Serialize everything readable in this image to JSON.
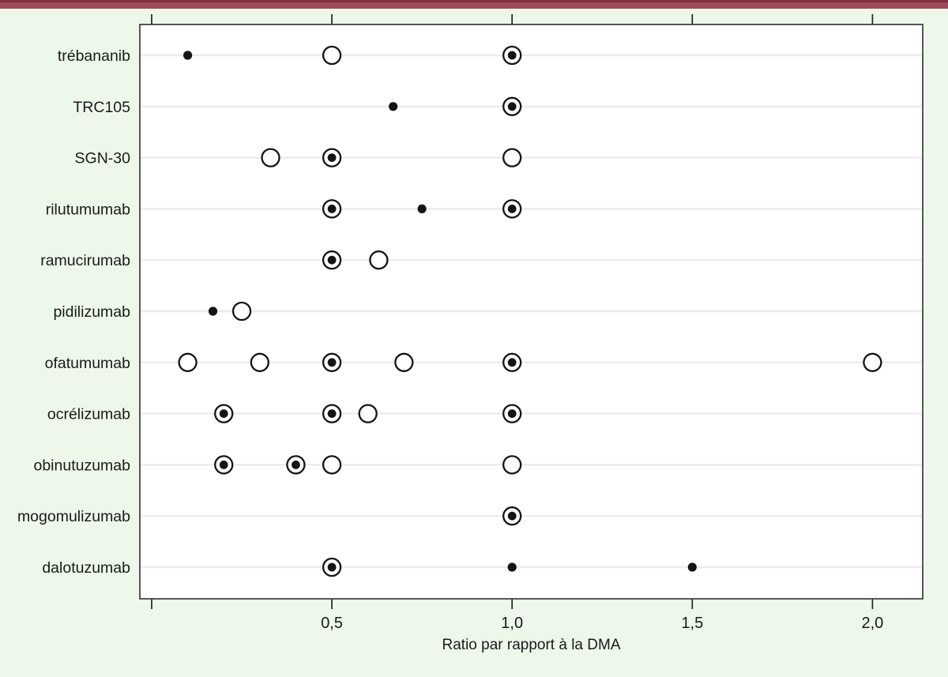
{
  "page": {
    "accent_bar_color": "#9d4b5b",
    "accent_bar_edge_color": "#7c3040",
    "background_color": "#edf8ea",
    "plot_background_color": "#ffffff",
    "marker_color": "#141414",
    "gridline_color": "#ebebeb"
  },
  "chart_data": {
    "type": "scatter",
    "title": "",
    "xlabel": "Ratio par rapport à la DMA",
    "ylabel": "",
    "x_range": [
      -0.03,
      2.14
    ],
    "grid": "horizontal",
    "legend": "none",
    "x_ticks": [
      {
        "value": 0.0,
        "label": ""
      },
      {
        "value": 0.5,
        "label": "0,5"
      },
      {
        "value": 1.0,
        "label": "1,0"
      },
      {
        "value": 1.5,
        "label": "1,5"
      },
      {
        "value": 2.0,
        "label": "2,0"
      }
    ],
    "categories": [
      "trébananib",
      "TRC105",
      "SGN-30",
      "rilutumumab",
      "ramucirumab",
      "pidilizumab",
      "ofatumumab",
      "ocrélizumab",
      "obinutuzumab",
      "mogomulizumab",
      "dalotuzumab"
    ],
    "marker_types": {
      "dot": "small filled black dot",
      "circle": "large open circle",
      "circle_dot": "large open circle with filled center dot"
    },
    "points": [
      {
        "category": "trébananib",
        "value": 0.1,
        "marker": "dot"
      },
      {
        "category": "trébananib",
        "value": 0.5,
        "marker": "circle"
      },
      {
        "category": "trébananib",
        "value": 1.0,
        "marker": "circle_dot"
      },
      {
        "category": "TRC105",
        "value": 0.67,
        "marker": "dot"
      },
      {
        "category": "TRC105",
        "value": 1.0,
        "marker": "circle_dot"
      },
      {
        "category": "SGN-30",
        "value": 0.33,
        "marker": "circle"
      },
      {
        "category": "SGN-30",
        "value": 0.5,
        "marker": "circle_dot"
      },
      {
        "category": "SGN-30",
        "value": 1.0,
        "marker": "circle"
      },
      {
        "category": "rilutumumab",
        "value": 0.5,
        "marker": "circle_dot"
      },
      {
        "category": "rilutumumab",
        "value": 0.75,
        "marker": "dot"
      },
      {
        "category": "rilutumumab",
        "value": 1.0,
        "marker": "circle_dot"
      },
      {
        "category": "ramucirumab",
        "value": 0.5,
        "marker": "circle_dot"
      },
      {
        "category": "ramucirumab",
        "value": 0.63,
        "marker": "circle"
      },
      {
        "category": "pidilizumab",
        "value": 0.17,
        "marker": "dot"
      },
      {
        "category": "pidilizumab",
        "value": 0.25,
        "marker": "circle"
      },
      {
        "category": "ofatumumab",
        "value": 0.1,
        "marker": "circle"
      },
      {
        "category": "ofatumumab",
        "value": 0.3,
        "marker": "circle"
      },
      {
        "category": "ofatumumab",
        "value": 0.5,
        "marker": "circle_dot"
      },
      {
        "category": "ofatumumab",
        "value": 0.7,
        "marker": "circle"
      },
      {
        "category": "ofatumumab",
        "value": 1.0,
        "marker": "circle_dot"
      },
      {
        "category": "ofatumumab",
        "value": 2.0,
        "marker": "circle"
      },
      {
        "category": "ocrélizumab",
        "value": 0.2,
        "marker": "circle_dot"
      },
      {
        "category": "ocrélizumab",
        "value": 0.5,
        "marker": "circle_dot"
      },
      {
        "category": "ocrélizumab",
        "value": 0.6,
        "marker": "circle"
      },
      {
        "category": "ocrélizumab",
        "value": 1.0,
        "marker": "circle_dot"
      },
      {
        "category": "obinutuzumab",
        "value": 0.2,
        "marker": "circle_dot"
      },
      {
        "category": "obinutuzumab",
        "value": 0.4,
        "marker": "circle_dot"
      },
      {
        "category": "obinutuzumab",
        "value": 0.5,
        "marker": "circle"
      },
      {
        "category": "obinutuzumab",
        "value": 1.0,
        "marker": "circle"
      },
      {
        "category": "mogomulizumab",
        "value": 1.0,
        "marker": "circle_dot"
      },
      {
        "category": "dalotuzumab",
        "value": 0.5,
        "marker": "circle_dot"
      },
      {
        "category": "dalotuzumab",
        "value": 1.0,
        "marker": "dot"
      },
      {
        "category": "dalotuzumab",
        "value": 1.5,
        "marker": "dot"
      }
    ]
  }
}
